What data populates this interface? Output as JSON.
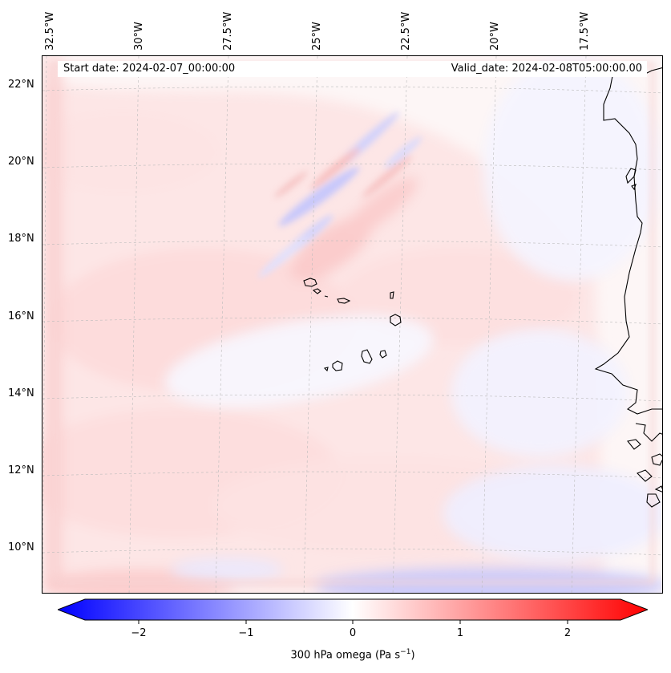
{
  "map": {
    "start_date": "Start date: 2024-02-07_00:00:00",
    "valid_date": "Valid_date: 2024-02-08T05:00:00.00",
    "lon_labels": [
      "32.5°W",
      "30°W",
      "27.5°W",
      "25°W",
      "22.5°W",
      "20°W",
      "17.5°W"
    ],
    "lat_labels": [
      "22°N",
      "20°N",
      "18°N",
      "16°N",
      "14°N",
      "12°N",
      "10°N"
    ],
    "features": {
      "islands": "Cape Verde islands",
      "coastline": "West African coastline"
    }
  },
  "colorbar": {
    "label": "300 hPa omega (Pa s",
    "label_sup": "−1",
    "label_close": ")",
    "tick_labels": [
      "−2",
      "−1",
      "0",
      "1",
      "2"
    ],
    "vmin": -2.5,
    "vmax": 2.5,
    "colors": {
      "low": "#0000ff",
      "mid": "#ffffff",
      "high": "#ff0000"
    }
  }
}
